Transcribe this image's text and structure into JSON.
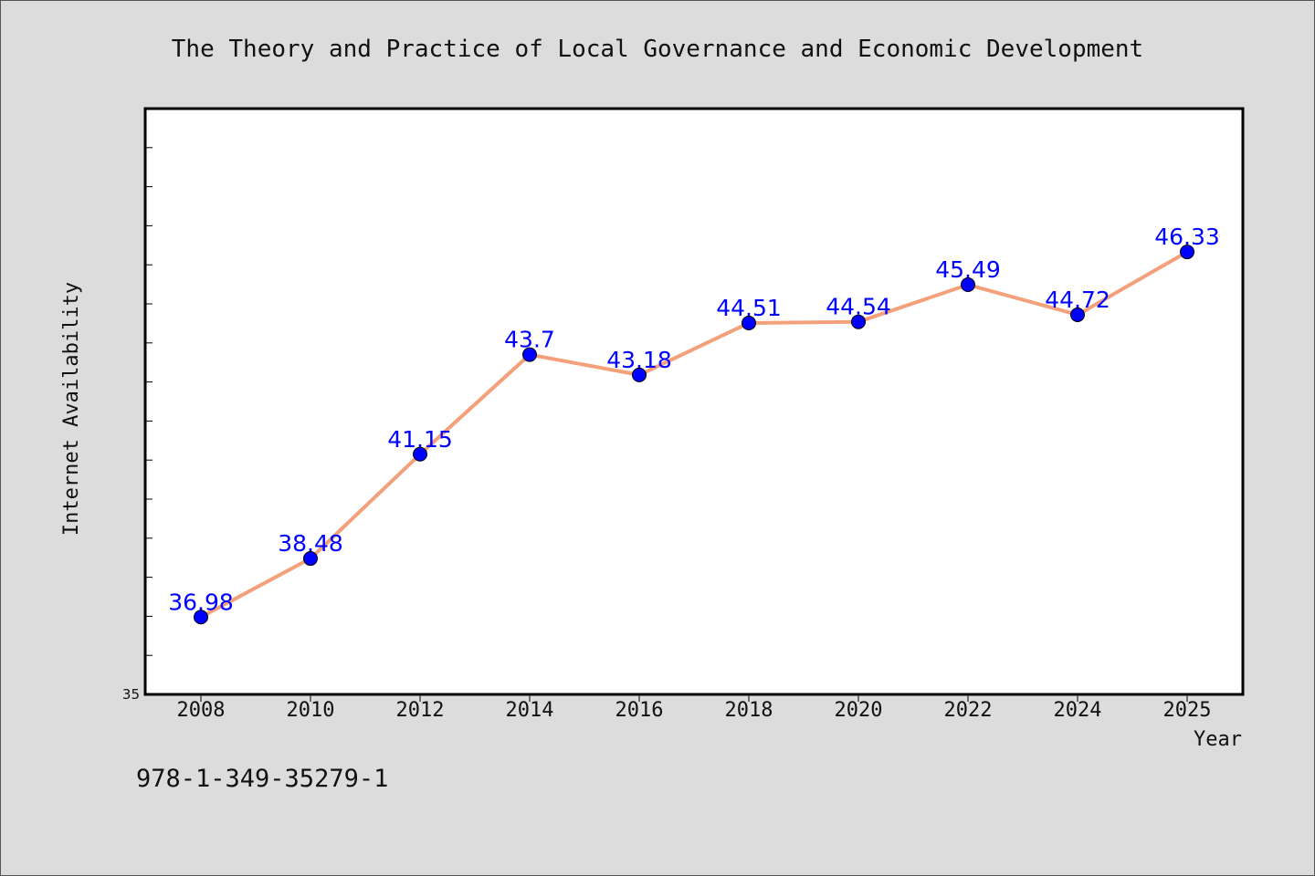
{
  "chart_data": {
    "type": "line",
    "title": "The Theory and Practice of Local Governance and Economic Development",
    "xlabel": "Year",
    "ylabel": "Internet Availability",
    "x": [
      "2008",
      "2010",
      "2012",
      "2014",
      "2016",
      "2018",
      "2020",
      "2022",
      "2024",
      "2025"
    ],
    "series": [
      {
        "values": [
          36.98,
          38.48,
          41.15,
          43.7,
          43.18,
          44.51,
          44.54,
          45.49,
          44.72,
          46.33
        ]
      }
    ],
    "data_labels": [
      "36.98",
      "38.48",
      "41.15",
      "43.7",
      "43.18",
      "44.51",
      "44.54",
      "45.49",
      "44.72",
      "46.33"
    ],
    "ylim": [
      35,
      50
    ],
    "y_tick_labels": [
      "35"
    ],
    "grid": false,
    "line_color": "#f4a07a",
    "marker_color": "#0000ff",
    "label_color": "#0000ff"
  },
  "footer": {
    "isbn": "978-1-349-35279-1"
  }
}
